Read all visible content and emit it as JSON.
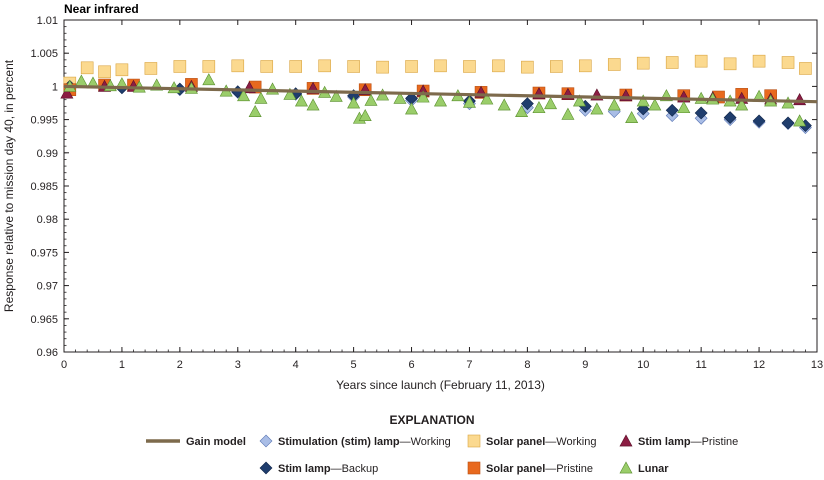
{
  "chart_data": {
    "type": "scatter",
    "title": "Near infrared",
    "xlabel": "Years since launch (February 11, 2013)",
    "ylabel": "Response relative to mission day 40, in percent",
    "xlim": [
      0,
      13
    ],
    "ylim": [
      0.96,
      1.01
    ],
    "x_ticks": [
      "0",
      "1",
      "2",
      "3",
      "4",
      "5",
      "6",
      "7",
      "8",
      "9",
      "10",
      "11",
      "12",
      "13"
    ],
    "y_ticks": [
      "0.96",
      "0.965",
      "0.97",
      "0.975",
      "0.98",
      "0.985",
      "0.99",
      "0.995",
      "1",
      "1.005",
      "1.01"
    ],
    "grid": false,
    "legend_heading": "EXPLANATION",
    "legend_position": "bottom",
    "series": [
      {
        "name": "Gain model",
        "bold_part": "Gain model",
        "rest_part": "",
        "marker": "line",
        "color": "#7d6a4c",
        "x": [
          0,
          13
        ],
        "y": [
          1.0,
          0.9977
        ]
      },
      {
        "name": "Stimulation (stim) lamp—Working",
        "bold_part": "Stimulation (stim) lamp",
        "rest_part": "—Working",
        "marker": "diamond",
        "color": "#a9bde6",
        "stroke": "#5b77b5",
        "x": [
          0.1,
          1,
          2,
          3,
          4,
          5,
          6,
          7,
          8,
          9,
          9.5,
          10,
          10.5,
          11,
          11.5,
          12,
          12.5,
          12.8
        ],
        "y": [
          1.0,
          0.9998,
          0.9995,
          0.9991,
          0.9988,
          0.9984,
          0.9979,
          0.9974,
          0.9968,
          0.9964,
          0.9962,
          0.9959,
          0.9956,
          0.9952,
          0.995,
          0.9946,
          0.9944,
          0.9938
        ]
      },
      {
        "name": "Stim lamp—Backup",
        "bold_part": "Stim lamp",
        "rest_part": "—Backup",
        "marker": "diamond",
        "color": "#1f3d6d",
        "stroke": "#0f2447",
        "x": [
          0.1,
          1,
          2,
          3,
          4,
          5,
          6,
          7,
          8,
          9,
          10,
          10.5,
          11,
          11.5,
          12,
          12.5,
          12.8
        ],
        "y": [
          1.0,
          0.9998,
          0.9996,
          0.9992,
          0.9989,
          0.9986,
          0.9982,
          0.9978,
          0.9974,
          0.997,
          0.9966,
          0.9964,
          0.996,
          0.9953,
          0.9948,
          0.9945,
          0.9941
        ]
      },
      {
        "name": "Solar panel—Working",
        "bold_part": "Solar panel",
        "rest_part": "—Working",
        "marker": "square",
        "color": "#fbd98f",
        "stroke": "#d9a441",
        "x": [
          0.1,
          0.4,
          0.7,
          1,
          1.5,
          2,
          2.5,
          3,
          3.5,
          4,
          4.5,
          5,
          5.5,
          6,
          6.5,
          7,
          7.5,
          8,
          8.5,
          9,
          9.5,
          10,
          10.5,
          11,
          11.5,
          12,
          12.5,
          12.8
        ],
        "y": [
          1.0005,
          1.0028,
          1.0022,
          1.0025,
          1.0027,
          1.003,
          1.003,
          1.0031,
          1.003,
          1.003,
          1.0031,
          1.003,
          1.0029,
          1.003,
          1.0031,
          1.003,
          1.0031,
          1.0029,
          1.003,
          1.0031,
          1.0033,
          1.0035,
          1.0036,
          1.0038,
          1.0034,
          1.0038,
          1.0036,
          1.0027
        ]
      },
      {
        "name": "Solar panel—Pristine",
        "bold_part": "Solar panel",
        "rest_part": "—Pristine",
        "marker": "square",
        "color": "#e8691e",
        "stroke": "#b84f12",
        "x": [
          0.1,
          0.7,
          1.2,
          2.2,
          3.3,
          4.3,
          5.2,
          6.2,
          7.2,
          8.2,
          8.7,
          9.7,
          10.7,
          11.3,
          11.7,
          12.2
        ],
        "y": [
          0.9995,
          1.0002,
          1.0002,
          1.0003,
          0.9999,
          0.9997,
          0.9995,
          0.9993,
          0.9991,
          0.999,
          0.9989,
          0.9987,
          0.9986,
          0.9984,
          0.9988,
          0.9986
        ]
      },
      {
        "name": "Stim lamp—Pristine",
        "bold_part": "Stim lamp",
        "rest_part": "—Pristine",
        "marker": "triangle",
        "color": "#8b1d43",
        "stroke": "#5a0f28",
        "x": [
          0.05,
          0.7,
          1.2,
          2.2,
          3.2,
          4.3,
          5.2,
          6.2,
          7.2,
          8.2,
          8.7,
          9.2,
          9.7,
          10.7,
          11.2,
          11.7,
          12.2,
          12.7
        ],
        "y": [
          0.999,
          1.0,
          1.0,
          1.0,
          0.9998,
          0.9997,
          0.9995,
          0.9993,
          0.9991,
          0.9989,
          0.9988,
          0.9987,
          0.9986,
          0.9984,
          0.9983,
          0.9982,
          0.9981,
          0.998
        ]
      },
      {
        "name": "Lunar",
        "bold_part": "Lunar",
        "rest_part": "",
        "marker": "triangle",
        "color": "#9acd6a",
        "stroke": "#5a8f2e",
        "x": [
          0.1,
          0.3,
          0.5,
          0.8,
          1.0,
          1.3,
          1.6,
          1.9,
          2.2,
          2.5,
          2.8,
          3.1,
          3.3,
          3.4,
          3.6,
          3.9,
          4.1,
          4.3,
          4.5,
          4.7,
          5.0,
          5.1,
          5.2,
          5.3,
          5.5,
          5.8,
          6.0,
          6.2,
          6.5,
          6.8,
          7.0,
          7.3,
          7.6,
          7.9,
          8.2,
          8.4,
          8.7,
          8.9,
          9.2,
          9.5,
          9.8,
          10.0,
          10.2,
          10.4,
          10.7,
          11.0,
          11.2,
          11.5,
          11.7,
          12.0,
          12.2,
          12.5,
          12.7
        ],
        "y": [
          1.0,
          1.0008,
          1.0005,
          1.0001,
          1.0004,
          0.9999,
          1.0002,
          0.9998,
          0.9997,
          1.001,
          0.9993,
          0.9986,
          0.9962,
          0.9982,
          0.9996,
          0.9988,
          0.9978,
          0.9972,
          0.9991,
          0.9985,
          0.9975,
          0.9952,
          0.9956,
          0.9979,
          0.9987,
          0.9982,
          0.9966,
          0.9984,
          0.9978,
          0.9986,
          0.9976,
          0.9981,
          0.9972,
          0.9962,
          0.9968,
          0.9974,
          0.9958,
          0.9978,
          0.9966,
          0.9972,
          0.9953,
          0.9978,
          0.9972,
          0.9986,
          0.9968,
          0.9982,
          0.9981,
          0.9978,
          0.9972,
          0.9985,
          0.9978,
          0.9975,
          0.9948
        ]
      }
    ]
  },
  "colors": {
    "axis": "#231f20",
    "background": "#ffffff"
  }
}
